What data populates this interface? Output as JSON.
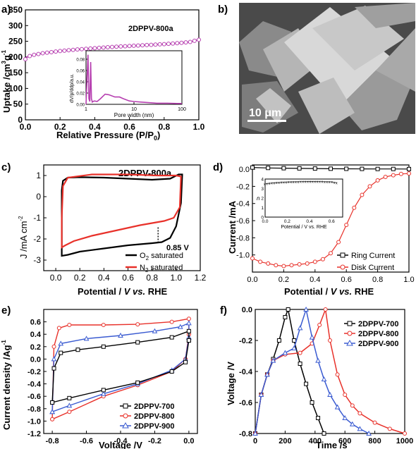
{
  "figure": {
    "panel_labels": [
      "a)",
      "b)",
      "c)",
      "d)",
      "e)",
      "f)"
    ],
    "colors": {
      "magenta": "#b63fb0",
      "black": "#000000",
      "red": "#e8312a",
      "blue": "#3a5bd1",
      "sem_bg": "#3d3d3d"
    }
  },
  "chart_data": [
    {
      "id": "a",
      "type": "line",
      "legend_text": "2DPPV-800a",
      "xlabel": "Relative  Pressure (P/P",
      "xlabel_sub": "0",
      "xlabel_end": ")",
      "ylabel": "Uptake /cm",
      "ylabel_sup": "3",
      "ylabel_rest": "g",
      "ylabel_sup2": "-1",
      "xlim": [
        0.0,
        1.0
      ],
      "ylim": [
        0,
        350
      ],
      "xticks": [
        "0.0",
        "0.2",
        "0.4",
        "0.6",
        "0.8",
        "1.0"
      ],
      "yticks": [
        "0",
        "50",
        "100",
        "150",
        "200",
        "250",
        "300",
        "350"
      ],
      "series": [
        {
          "values_x": [
            0.0,
            0.01,
            0.03,
            0.05,
            0.1,
            0.2,
            0.3,
            0.4,
            0.5,
            0.6,
            0.7,
            0.8,
            0.9,
            0.95,
            1.0
          ],
          "values_y": [
            193,
            200,
            204,
            207,
            212,
            219,
            224,
            228,
            232,
            235,
            238,
            241,
            245,
            248,
            255
          ]
        }
      ],
      "inset": {
        "xlabel": "Pore width (nm)",
        "ylabel": "dV/p/ddp/a.u.",
        "xticks": [
          "1",
          "10",
          "100"
        ],
        "yticks": [
          "0.00",
          "0.02",
          "0.04",
          "0.06",
          "0.08"
        ],
        "x": [
          1.0,
          1.1,
          1.15,
          1.2,
          1.25,
          1.3,
          1.35,
          1.4,
          1.5,
          1.7,
          2.0,
          2.5,
          3,
          4,
          5,
          6,
          8,
          10,
          14,
          20,
          30,
          50,
          80,
          100
        ],
        "y": [
          0.0,
          0.088,
          0.01,
          0.005,
          0.075,
          0.01,
          0.004,
          0.005,
          0.006,
          0.005,
          0.01,
          0.018,
          0.017,
          0.013,
          0.013,
          0.01,
          0.006,
          0.005,
          0.004,
          0.003,
          0.002,
          0.002,
          0.0015,
          0.0015
        ]
      }
    },
    {
      "id": "c",
      "type": "line",
      "legend_text": "2DPPV-800a",
      "annotation": "0.85 V",
      "xlabel": "Potential / ",
      "xlabel_it": "V vs.",
      "xlabel_end": " RHE",
      "ylabel": "J /mA cm",
      "ylabel_sup": "-2",
      "xlim": [
        -0.1,
        1.2
      ],
      "ylim": [
        -3.5,
        1.5
      ],
      "xticks": [
        "0.0",
        "0.2",
        "0.4",
        "0.6",
        "0.8",
        "1.0",
        "1.2"
      ],
      "yticks": [
        "-3",
        "-2",
        "-1",
        "0",
        "1"
      ],
      "series": [
        {
          "name": "O",
          "name_sub": "2",
          "name_rest": " saturated",
          "color": "black"
        },
        {
          "name": "N",
          "name_sub": "2",
          "name_rest": " saturated",
          "color": "red"
        }
      ]
    },
    {
      "id": "d",
      "type": "line",
      "xlabel": "Potential / ",
      "xlabel_it": "V vs.",
      "xlabel_end": " RHE",
      "ylabel": "Current /mA",
      "xlim": [
        0.0,
        1.0
      ],
      "ylim": [
        -1.2,
        0.05
      ],
      "xticks": [
        "0.0",
        "0.2",
        "0.4",
        "0.6",
        "0.8",
        "1.0"
      ],
      "yticks": [
        "0.0",
        "-0.2",
        "-0.4",
        "-0.6",
        "-0.8",
        "-1.0"
      ],
      "series": [
        {
          "name": "Ring Current",
          "color": "black",
          "x": [
            0.0,
            0.1,
            0.2,
            0.3,
            0.4,
            0.5,
            0.6,
            0.7,
            0.8,
            0.9,
            1.0
          ],
          "y": [
            0.02,
            0.015,
            0.012,
            0.01,
            0.008,
            0.006,
            0.005,
            0.004,
            0.003,
            0.003,
            0.002
          ]
        },
        {
          "name": "Disk  Current",
          "color": "red",
          "x": [
            0.0,
            0.05,
            0.1,
            0.15,
            0.2,
            0.25,
            0.3,
            0.35,
            0.4,
            0.45,
            0.5,
            0.55,
            0.6,
            0.65,
            0.7,
            0.75,
            0.8,
            0.85,
            0.9,
            0.95,
            1.0
          ],
          "y": [
            -1.04,
            -1.08,
            -1.1,
            -1.12,
            -1.13,
            -1.12,
            -1.11,
            -1.1,
            -1.08,
            -1.05,
            -0.98,
            -0.85,
            -0.65,
            -0.45,
            -0.3,
            -0.2,
            -0.13,
            -0.09,
            -0.07,
            -0.055,
            -0.05
          ]
        }
      ],
      "inset": {
        "xlabel": "Potential / V vs. RHE",
        "ylabel": "n",
        "xticks": [
          "0.0",
          "0.2",
          "0.4",
          "0.6"
        ],
        "yticks": [
          "0",
          "1",
          "2",
          "3",
          "4"
        ],
        "x": [
          0.0,
          0.1,
          0.2,
          0.3,
          0.4,
          0.5,
          0.6,
          0.65
        ],
        "y": [
          3.5,
          3.62,
          3.68,
          3.72,
          3.74,
          3.73,
          3.7,
          3.6
        ]
      }
    },
    {
      "id": "e",
      "type": "line",
      "xlabel": "Voltage /V",
      "ylabel": "Current density /Ag",
      "ylabel_sup": "-1",
      "xlim": [
        -0.85,
        0.05
      ],
      "ylim": [
        -1.2,
        0.8
      ],
      "xticks": [
        "-0.8",
        "-0.6",
        "-0.4",
        "-0.2",
        "0.0"
      ],
      "yticks": [
        "-1.2",
        "-1.0",
        "-0.8",
        "-0.6",
        "-0.4",
        "-0.2",
        "0.0",
        "0.2",
        "0.4",
        "0.6"
      ],
      "series": [
        {
          "name": "2DPPV-700",
          "color": "black"
        },
        {
          "name": "2DPPV-800",
          "color": "red"
        },
        {
          "name": "2DPPV-900",
          "color": "blue"
        }
      ]
    },
    {
      "id": "f",
      "type": "line",
      "xlabel": "Time /s",
      "ylabel": "Voltage /V",
      "xlim": [
        0,
        1000
      ],
      "ylim": [
        -0.8,
        0.0
      ],
      "xticks": [
        "0",
        "200",
        "400",
        "600",
        "800",
        "1000"
      ],
      "yticks": [
        "0.0",
        "-0.2",
        "-0.4",
        "-0.6",
        "-0.8"
      ],
      "series": [
        {
          "name": "2DPPV-700",
          "color": "black",
          "x": [
            0,
            40,
            80,
            120,
            160,
            200,
            220,
            260,
            300,
            340,
            380,
            420,
            460
          ],
          "y": [
            -0.8,
            -0.55,
            -0.42,
            -0.32,
            -0.2,
            -0.05,
            0.0,
            -0.2,
            -0.35,
            -0.48,
            -0.6,
            -0.7,
            -0.8
          ]
        },
        {
          "name": "2DPPV-800",
          "color": "red",
          "x": [
            0,
            40,
            80,
            120,
            200,
            300,
            380,
            430,
            470,
            500,
            550,
            600,
            650,
            700,
            800,
            900,
            1000
          ],
          "y": [
            -0.8,
            -0.55,
            -0.42,
            -0.33,
            -0.29,
            -0.28,
            -0.22,
            -0.1,
            0.0,
            -0.2,
            -0.42,
            -0.55,
            -0.62,
            -0.67,
            -0.73,
            -0.77,
            -0.8
          ]
        },
        {
          "name": "2DPPV-900",
          "color": "blue",
          "x": [
            0,
            40,
            80,
            120,
            200,
            260,
            300,
            340,
            380,
            420,
            460,
            500,
            550,
            600,
            650,
            700,
            760
          ],
          "y": [
            -0.8,
            -0.55,
            -0.42,
            -0.33,
            -0.28,
            -0.25,
            -0.12,
            0.0,
            -0.18,
            -0.33,
            -0.45,
            -0.55,
            -0.63,
            -0.7,
            -0.74,
            -0.77,
            -0.8
          ]
        }
      ]
    }
  ],
  "sem": {
    "scalebar_label": "10 μm"
  }
}
